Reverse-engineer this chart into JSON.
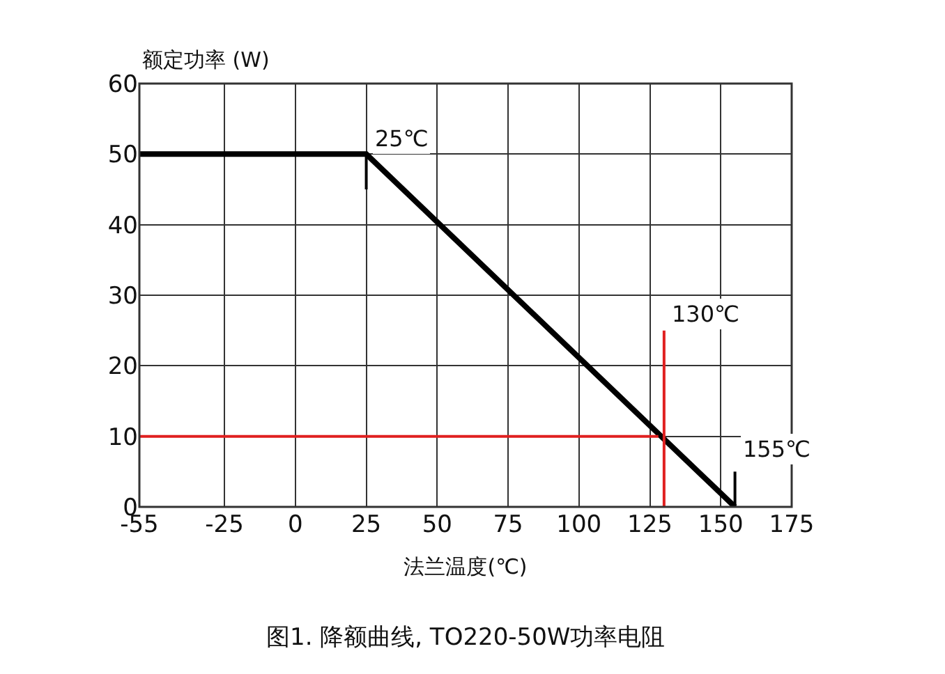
{
  "chart_data": {
    "type": "line",
    "title": "图1. 降额曲线, TO220-50W功率电阻",
    "xlabel": "法兰温度(℃)",
    "ylabel": "额定功率 (W)",
    "series": [
      {
        "color": "#000000",
        "x": [
          -55,
          25,
          155
        ],
        "values": [
          50,
          50,
          0
        ]
      },
      {
        "color": "#e02020",
        "x": [
          -55,
          128
        ],
        "values": [
          10,
          10
        ]
      },
      {
        "color": "#e02020",
        "x": [
          130,
          130
        ],
        "values": [
          0,
          25
        ]
      },
      {
        "color": "#000000",
        "x": [
          25,
          25
        ],
        "values": [
          50,
          45
        ]
      },
      {
        "color": "#000000",
        "x": [
          155,
          155
        ],
        "values": [
          0,
          5
        ]
      }
    ],
    "annotations": [
      {
        "text": "25℃",
        "x": 25,
        "y": 50
      },
      {
        "text": "130℃",
        "x": 130,
        "y": 25
      },
      {
        "text": "155℃",
        "x": 155,
        "y": 0
      }
    ],
    "xlim": [
      -55,
      175
    ],
    "xticks": [
      -55,
      -25,
      0,
      25,
      50,
      75,
      100,
      125,
      150,
      175
    ],
    "ylim": [
      0,
      60
    ],
    "yticks": [
      0,
      10,
      20,
      30,
      40,
      50,
      60
    ],
    "grid": true,
    "marker": "none",
    "line_style": "solid"
  }
}
